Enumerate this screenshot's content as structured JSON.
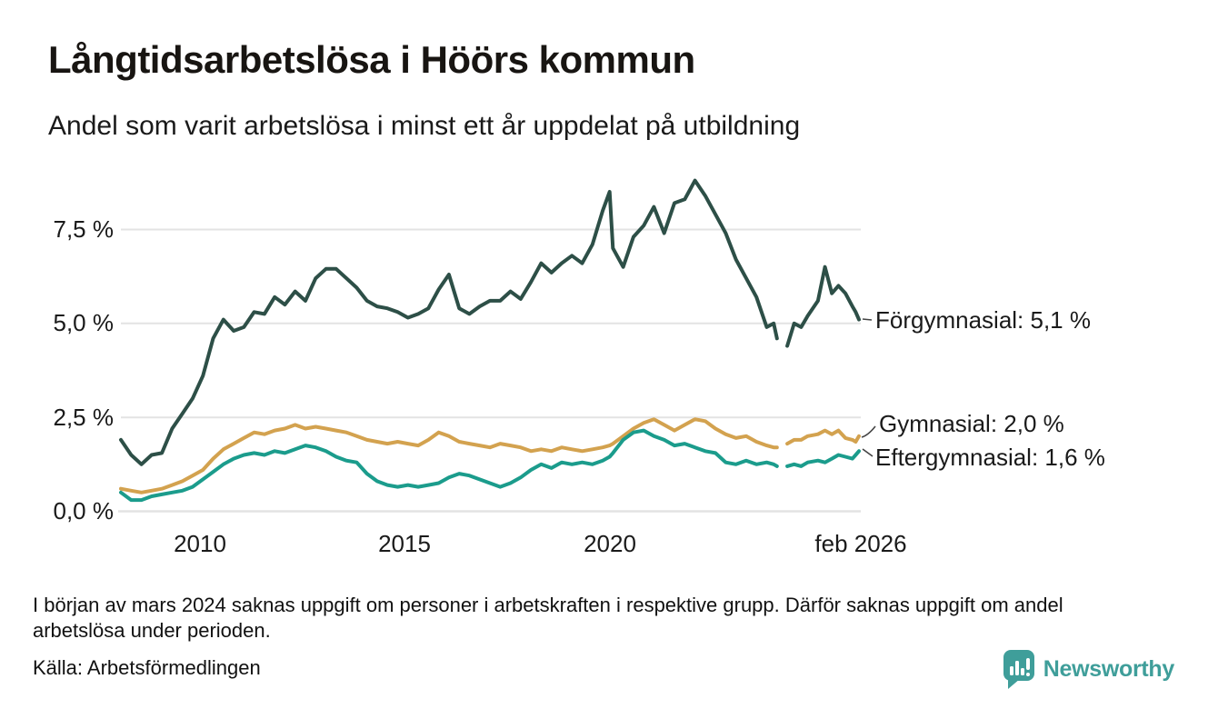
{
  "header": {
    "title": "Långtidsarbetslösa i Höörs kommun",
    "subtitle": "Andel som varit arbetslösa i minst ett år uppdelat på utbildning"
  },
  "chart_data": {
    "type": "line",
    "title": "Långtidsarbetslösa i Höörs kommun",
    "subtitle": "Andel som varit arbetslösa i minst ett år uppdelat på utbildning",
    "xlabel": "",
    "ylabel": "",
    "grid": "horizontal",
    "legend_position": "right-end-labels",
    "xlim": [
      2008.08,
      2026.08
    ],
    "ylim": [
      0,
      9
    ],
    "y_tick_values": [
      7.5,
      5.0,
      2.5,
      0.0
    ],
    "y_tick_labels": [
      "7,5 %",
      "5,0 %",
      "2,5 %",
      "0,0 %"
    ],
    "x_tick_values": [
      2010,
      2015,
      2020,
      2026.08
    ],
    "x_tick_labels": [
      "2010",
      "2015",
      "2020",
      "feb 2026"
    ],
    "gap_period": "2024.17–2024.25 (uppgift saknas)",
    "x": [
      2008.08,
      2008.33,
      2008.58,
      2008.83,
      2009.08,
      2009.33,
      2009.58,
      2009.83,
      2010.08,
      2010.33,
      2010.58,
      2010.83,
      2011.08,
      2011.33,
      2011.58,
      2011.83,
      2012.08,
      2012.33,
      2012.58,
      2012.83,
      2013.08,
      2013.33,
      2013.58,
      2013.83,
      2014.08,
      2014.33,
      2014.58,
      2014.83,
      2015.08,
      2015.33,
      2015.58,
      2015.83,
      2016.08,
      2016.33,
      2016.58,
      2016.83,
      2017.08,
      2017.33,
      2017.58,
      2017.83,
      2018.08,
      2018.33,
      2018.58,
      2018.83,
      2019.08,
      2019.33,
      2019.58,
      2019.83,
      2020.0,
      2020.08,
      2020.33,
      2020.58,
      2020.83,
      2021.08,
      2021.33,
      2021.58,
      2021.83,
      2022.08,
      2022.33,
      2022.58,
      2022.83,
      2023.08,
      2023.33,
      2023.58,
      2023.83,
      2024.0,
      2024.08,
      2024.17,
      2024.25,
      2024.33,
      2024.5,
      2024.67,
      2024.83,
      2025.08,
      2025.25,
      2025.42,
      2025.58,
      2025.75,
      2025.92,
      2026.0,
      2026.08
    ],
    "series": [
      {
        "name": "Förgymnasial",
        "end_label": "Förgymnasial: 5,1 %",
        "last_value": "5,1 %",
        "color": "#2d4f47",
        "values": [
          1.9,
          1.5,
          1.25,
          1.5,
          1.55,
          2.2,
          2.6,
          3.0,
          3.6,
          4.6,
          5.1,
          4.8,
          4.9,
          5.3,
          5.25,
          5.7,
          5.5,
          5.85,
          5.6,
          6.2,
          6.45,
          6.45,
          6.2,
          5.95,
          5.6,
          5.45,
          5.4,
          5.3,
          5.15,
          5.25,
          5.4,
          5.9,
          6.3,
          5.4,
          5.25,
          5.45,
          5.6,
          5.6,
          5.85,
          5.65,
          6.1,
          6.6,
          6.35,
          6.6,
          6.8,
          6.6,
          7.1,
          8.0,
          8.5,
          7.0,
          6.5,
          7.3,
          7.6,
          8.1,
          7.4,
          8.2,
          8.3,
          8.8,
          8.4,
          7.9,
          7.4,
          6.7,
          6.2,
          5.7,
          4.9,
          5.0,
          4.6,
          null,
          null,
          4.4,
          5.0,
          4.9,
          5.2,
          5.6,
          6.5,
          5.8,
          6.0,
          5.8,
          5.45,
          5.3,
          5.1
        ]
      },
      {
        "name": "Gymnasial",
        "end_label": "Gymnasial: 2,0 %",
        "last_value": "2,0 %",
        "color": "#d3a24f",
        "values": [
          0.6,
          0.55,
          0.5,
          0.55,
          0.6,
          0.7,
          0.8,
          0.95,
          1.1,
          1.4,
          1.65,
          1.8,
          1.95,
          2.1,
          2.05,
          2.15,
          2.2,
          2.3,
          2.2,
          2.25,
          2.2,
          2.15,
          2.1,
          2.0,
          1.9,
          1.85,
          1.8,
          1.85,
          1.8,
          1.75,
          1.9,
          2.1,
          2.0,
          1.85,
          1.8,
          1.75,
          1.7,
          1.8,
          1.75,
          1.7,
          1.6,
          1.65,
          1.6,
          1.7,
          1.65,
          1.6,
          1.65,
          1.7,
          1.75,
          1.8,
          2.0,
          2.2,
          2.35,
          2.45,
          2.3,
          2.15,
          2.3,
          2.45,
          2.4,
          2.2,
          2.05,
          1.95,
          2.0,
          1.85,
          1.75,
          1.7,
          1.7,
          null,
          null,
          1.8,
          1.9,
          1.9,
          2.0,
          2.05,
          2.15,
          2.05,
          2.15,
          1.95,
          1.9,
          1.85,
          2.0
        ]
      },
      {
        "name": "Eftergymnasial",
        "end_label": "Eftergymnasial: 1,6 %",
        "last_value": "1,6 %",
        "color": "#1b9c8c",
        "values": [
          0.5,
          0.3,
          0.3,
          0.4,
          0.45,
          0.5,
          0.55,
          0.65,
          0.85,
          1.05,
          1.25,
          1.4,
          1.5,
          1.55,
          1.5,
          1.6,
          1.55,
          1.65,
          1.75,
          1.7,
          1.6,
          1.45,
          1.35,
          1.3,
          1.0,
          0.8,
          0.7,
          0.65,
          0.7,
          0.65,
          0.7,
          0.75,
          0.9,
          1.0,
          0.95,
          0.85,
          0.75,
          0.65,
          0.75,
          0.9,
          1.1,
          1.25,
          1.15,
          1.3,
          1.25,
          1.3,
          1.25,
          1.35,
          1.45,
          1.55,
          1.9,
          2.1,
          2.15,
          2.0,
          1.9,
          1.75,
          1.8,
          1.7,
          1.6,
          1.55,
          1.3,
          1.25,
          1.35,
          1.25,
          1.3,
          1.25,
          1.2,
          null,
          null,
          1.2,
          1.25,
          1.2,
          1.3,
          1.35,
          1.3,
          1.4,
          1.5,
          1.45,
          1.4,
          1.5,
          1.6
        ]
      }
    ]
  },
  "footer": {
    "note": "I början av mars 2024 saknas uppgift om personer i arbetskraften i respektive grupp. Därför saknas uppgift om andel arbetslösa under perioden.",
    "source": "Källa: Arbetsförmedlingen",
    "brand": "Newsworthy"
  },
  "colors": {
    "brand_teal": "#3f9e9a",
    "grid": "#e3e3e3",
    "text": "#1a1a1a"
  }
}
